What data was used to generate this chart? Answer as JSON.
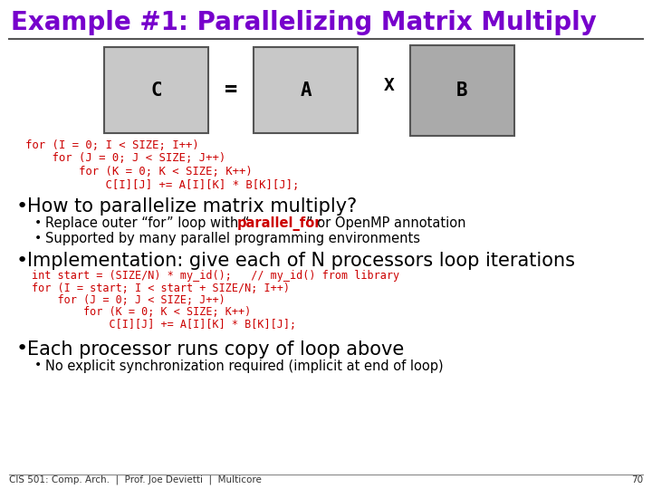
{
  "title": "Example #1: Parallelizing Matrix Multiply",
  "title_color": "#7700cc",
  "bg_color": "#ffffff",
  "matrix_C_color": "#c8c8c8",
  "matrix_A_color": "#c8c8c8",
  "matrix_B_color": "#aaaaaa",
  "code_color": "#cc0000",
  "parallel_for_color": "#cc0000",
  "footer_text": "CIS 501: Comp. Arch.  |  Prof. Joe Devietti  |  Multicore",
  "footer_page": "70",
  "line1_code": "for (I = 0; I < SIZE; I++)",
  "line2_code": "    for (J = 0; J < SIZE; J++)",
  "line3_code": "        for (K = 0; K < SIZE; K++)",
  "line4_code": "            C[I][J] += A[I][K] * B[K][J];",
  "bullet1": "How to parallelize matrix multiply?",
  "sub1a_pre": "Replace outer “for” loop with “",
  "sub1a_bold": "parallel_for",
  "sub1a_post": "” or OpenMP annotation",
  "sub1b": "Supported by many parallel programming environments",
  "bullet2": "Implementation: give each of N processors loop iterations",
  "impl1": "int start = (SIZE/N) * my_id();   // my_id() from library",
  "impl2": "for (I = start; I < start + SIZE/N; I++)",
  "impl3": "    for (J = 0; J < SIZE; J++)",
  "impl4": "        for (K = 0; K < SIZE; K++)",
  "impl5": "            C[I][J] += A[I][K] * B[K][J];",
  "bullet3": "Each processor runs copy of loop above",
  "sub3a": "No explicit synchronization required (implicit at end of loop)"
}
